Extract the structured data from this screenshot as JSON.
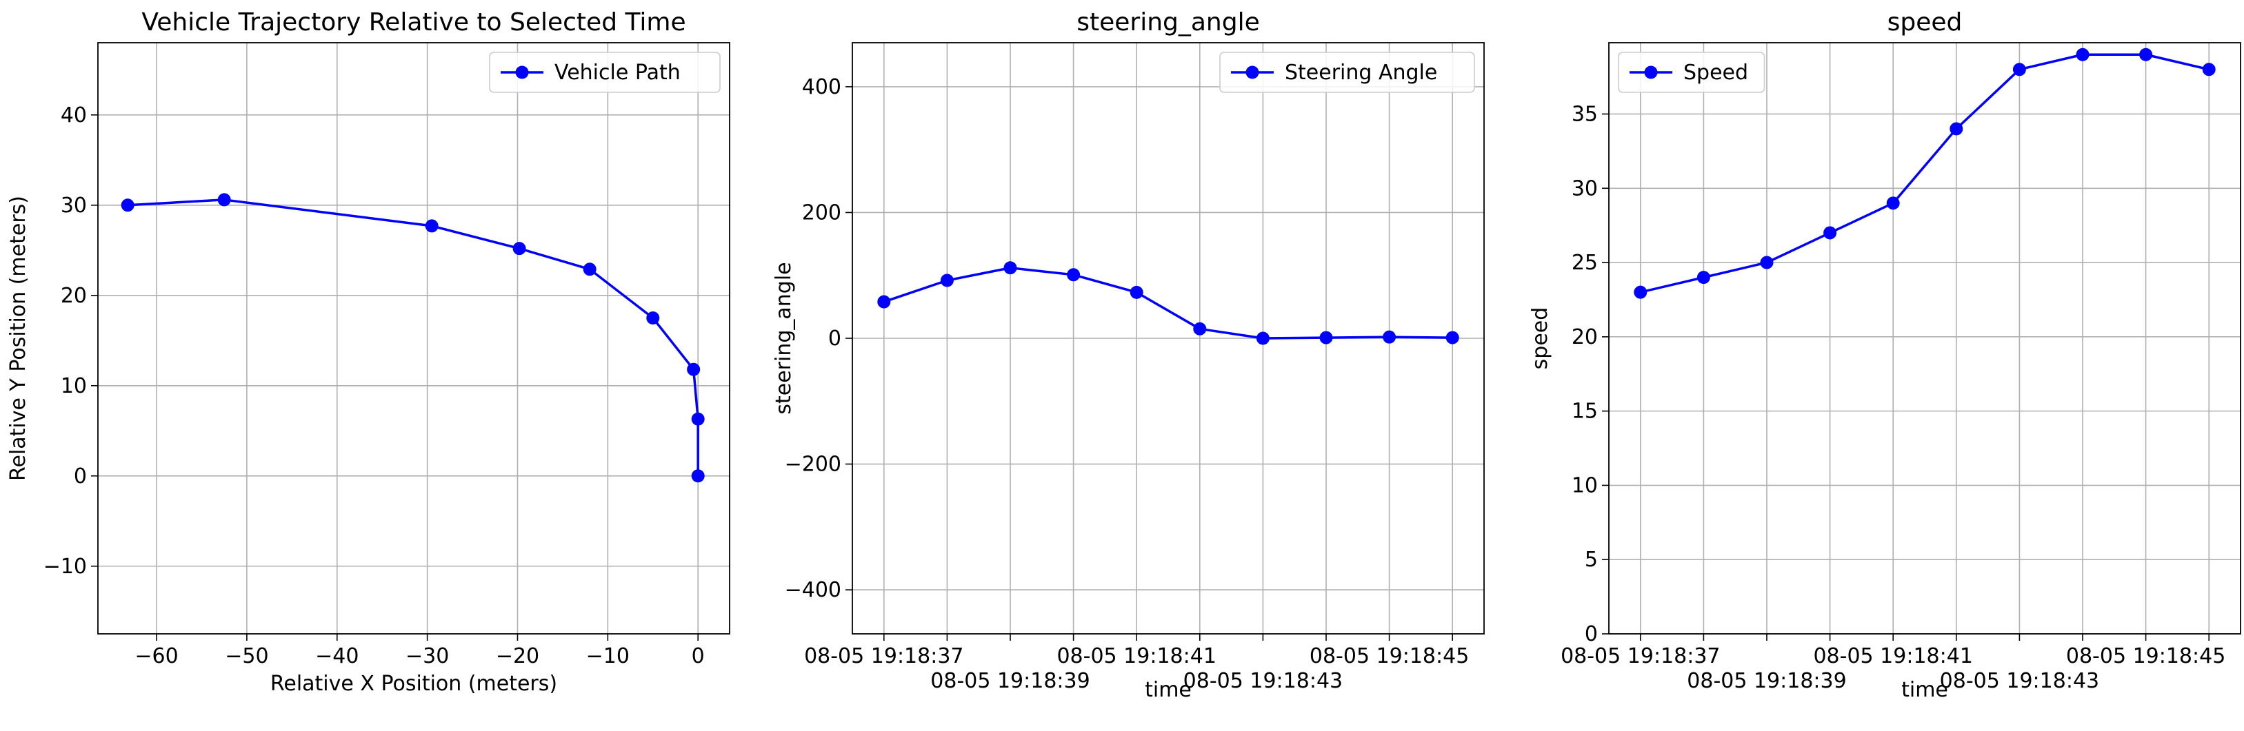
{
  "chart_data": [
    {
      "type": "line",
      "title": "Vehicle Trajectory Relative to Selected Time",
      "xlabel": "Relative X Position (meters)",
      "ylabel": "Relative Y Position (meters)",
      "xlim": [
        -66.5,
        3.5
      ],
      "ylim": [
        -17.5,
        48
      ],
      "grid": true,
      "legend": "top-right",
      "x_ticks": [
        -60,
        -50,
        -40,
        -30,
        -20,
        -10,
        0
      ],
      "y_ticks": [
        -10,
        0,
        10,
        20,
        30,
        40
      ],
      "x_tick_labels": [
        "−60",
        "−50",
        "−40",
        "−30",
        "−20",
        "−10",
        "0"
      ],
      "y_tick_labels": [
        "−10",
        "0",
        "10",
        "20",
        "30",
        "40"
      ],
      "series": [
        {
          "name": "Vehicle Path",
          "color": "#0000ff",
          "x": [
            0,
            0,
            -0.5,
            -5,
            -12,
            -19.8,
            -29.5,
            -52.5,
            -63.2
          ],
          "y": [
            0,
            6.3,
            11.8,
            17.5,
            22.9,
            25.2,
            27.7,
            30.6,
            30
          ]
        }
      ]
    },
    {
      "type": "line",
      "title": "steering_angle",
      "xlabel": "time",
      "ylabel": "steering_angle",
      "xlim": [
        "08-05 19:18:36.5",
        "08-05 19:18:46.5"
      ],
      "ylim": [
        -470,
        470
      ],
      "grid": true,
      "legend": "top-right",
      "x_ticks": [
        "08-05 19:18:37",
        "08-05 19:18:38",
        "08-05 19:18:39",
        "08-05 19:18:40",
        "08-05 19:18:41",
        "08-05 19:18:42",
        "08-05 19:18:43",
        "08-05 19:18:44",
        "08-05 19:18:45",
        "08-05 19:18:46"
      ],
      "x_tick_labels": [
        "08-05 19:18:37",
        "",
        "08-05 19:18:39",
        "",
        "08-05 19:18:41",
        "",
        "08-05 19:18:43",
        "",
        "08-05 19:18:45",
        ""
      ],
      "y_ticks": [
        -400,
        -200,
        0,
        200,
        400
      ],
      "y_tick_labels": [
        "−400",
        "−200",
        "0",
        "200",
        "400"
      ],
      "series": [
        {
          "name": "Steering Angle",
          "color": "#0000ff",
          "x": [
            "08-05 19:18:37",
            "08-05 19:18:38",
            "08-05 19:18:39",
            "08-05 19:18:40",
            "08-05 19:18:41",
            "08-05 19:18:42",
            "08-05 19:18:43",
            "08-05 19:18:44",
            "08-05 19:18:45",
            "08-05 19:18:46"
          ],
          "y": [
            58,
            92,
            112,
            101,
            73,
            15,
            0,
            1,
            2,
            1
          ]
        }
      ]
    },
    {
      "type": "line",
      "title": "speed",
      "xlabel": "time",
      "ylabel": "speed",
      "xlim": [
        "08-05 19:18:36.5",
        "08-05 19:18:46.5"
      ],
      "ylim": [
        0,
        39.8
      ],
      "grid": true,
      "legend": "top-left",
      "x_ticks": [
        "08-05 19:18:37",
        "08-05 19:18:38",
        "08-05 19:18:39",
        "08-05 19:18:40",
        "08-05 19:18:41",
        "08-05 19:18:42",
        "08-05 19:18:43",
        "08-05 19:18:44",
        "08-05 19:18:45",
        "08-05 19:18:46"
      ],
      "x_tick_labels": [
        "08-05 19:18:37",
        "",
        "08-05 19:18:39",
        "",
        "08-05 19:18:41",
        "",
        "08-05 19:18:43",
        "",
        "08-05 19:18:45",
        ""
      ],
      "y_ticks": [
        0,
        5,
        10,
        15,
        20,
        25,
        30,
        35
      ],
      "y_tick_labels": [
        "0",
        "5",
        "10",
        "15",
        "20",
        "25",
        "30",
        "35"
      ],
      "series": [
        {
          "name": "Speed",
          "color": "#0000ff",
          "x": [
            "08-05 19:18:37",
            "08-05 19:18:38",
            "08-05 19:18:39",
            "08-05 19:18:40",
            "08-05 19:18:41",
            "08-05 19:18:42",
            "08-05 19:18:43",
            "08-05 19:18:44",
            "08-05 19:18:45",
            "08-05 19:18:46"
          ],
          "y": [
            23,
            24,
            25,
            27,
            29,
            34,
            38,
            39,
            39,
            38
          ]
        }
      ]
    }
  ]
}
